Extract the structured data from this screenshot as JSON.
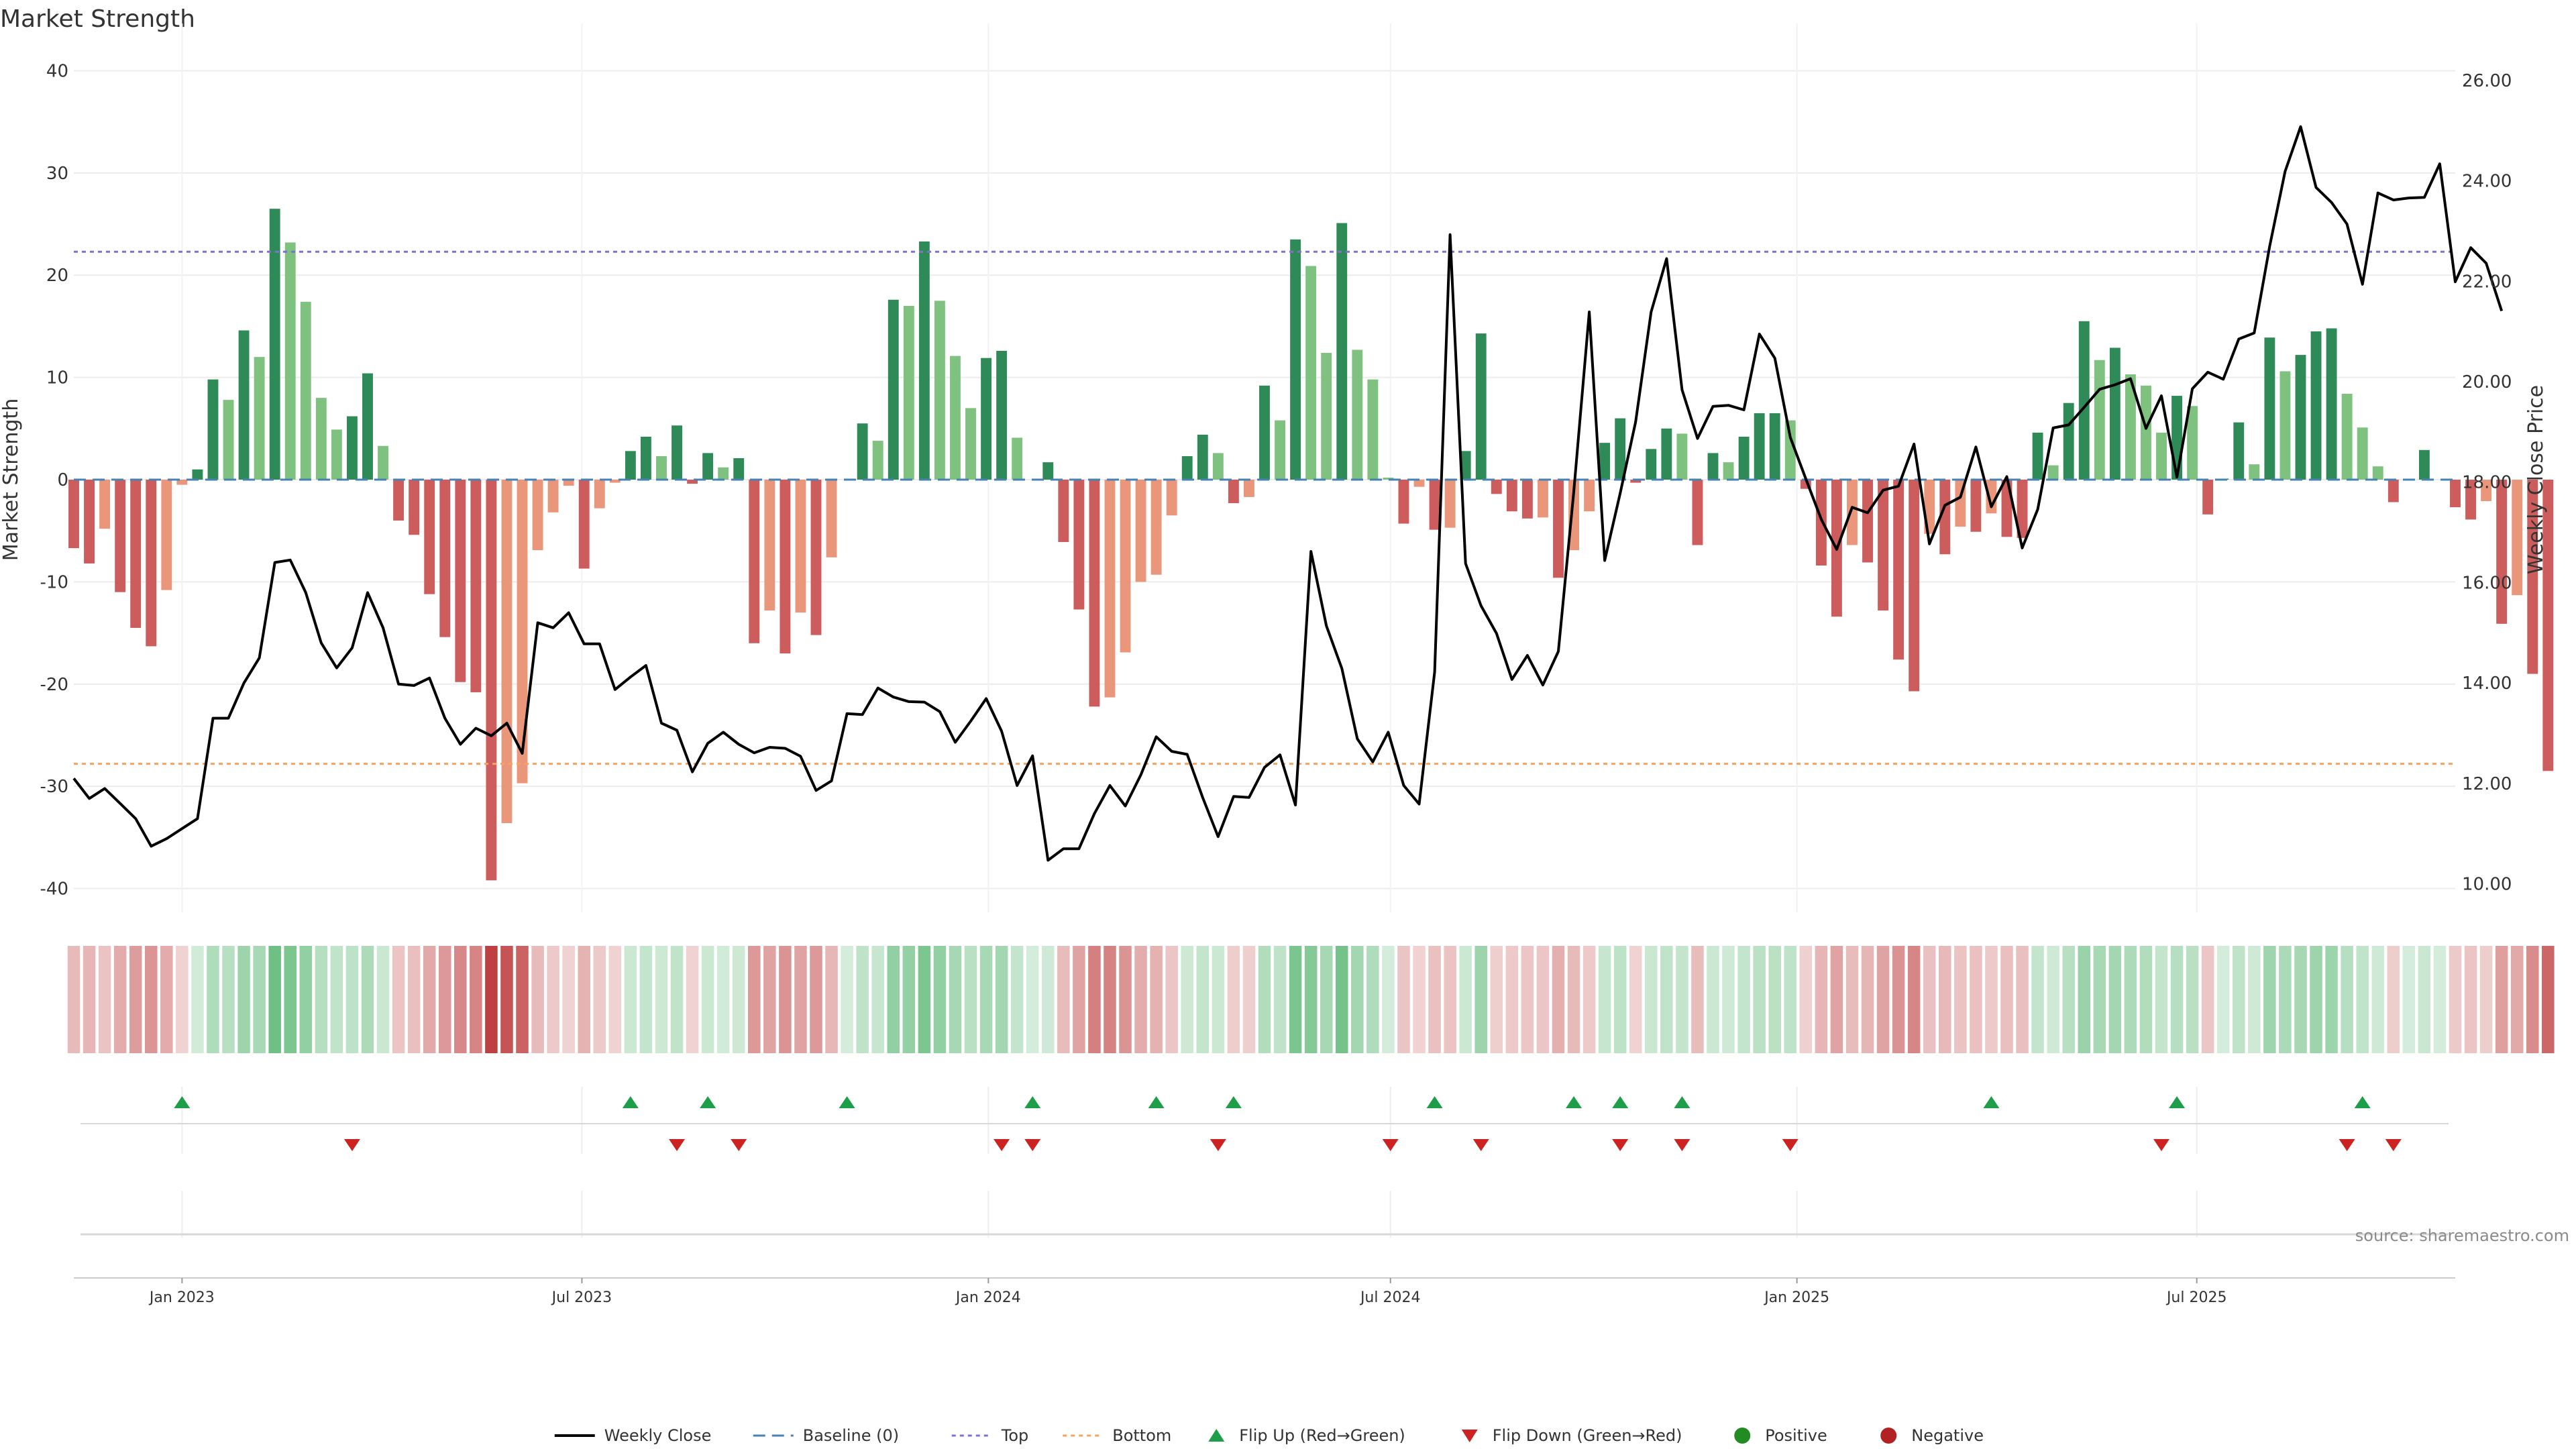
{
  "chart_data": {
    "type": "bar",
    "title": "Market Strength",
    "ylabel_left": "Market Strength",
    "ylabel_right": "Weekly Close Price",
    "ylim_left": [
      -42,
      42
    ],
    "ylim_right": [
      9.5,
      26.6
    ],
    "yticks_left": [
      40,
      30,
      20,
      10,
      0,
      -10,
      -20,
      -30,
      -40
    ],
    "yticks_right": [
      "26.00",
      "24.00",
      "22.00",
      "20.00",
      "18.00",
      "16.00",
      "14.00",
      "12.00",
      "10.00"
    ],
    "yticks_right_values": [
      26,
      24,
      22,
      20,
      18,
      16,
      14,
      12,
      10
    ],
    "x_start": "2022-11-13",
    "x_end": "2025-10-26",
    "xticks": [
      {
        "date": "2023-01-01",
        "label": "Jan 2023"
      },
      {
        "date": "2023-07-01",
        "label": "Jul 2023"
      },
      {
        "date": "2024-01-01",
        "label": "Jan 2024"
      },
      {
        "date": "2024-07-01",
        "label": "Jul 2024"
      },
      {
        "date": "2025-01-01",
        "label": "Jan 2025"
      },
      {
        "date": "2025-07-01",
        "label": "Jul 2025"
      }
    ],
    "weeks_first": "2022-11-13",
    "strength": [
      -6.7,
      -8.2,
      -4.8,
      -11,
      -14.5,
      -16.3,
      -10.8,
      -0.5,
      1,
      9.8,
      7.8,
      14.6,
      12,
      26.5,
      23.2,
      17.4,
      8,
      4.9,
      6.2,
      10.4,
      3.3,
      -4,
      -5.4,
      -11.2,
      -15.4,
      -19.8,
      -20.8,
      -39.2,
      -33.6,
      -29.7,
      -6.9,
      -3.2,
      -0.6,
      -8.7,
      -2.8,
      -0.3,
      2.8,
      4.2,
      2.3,
      5.3,
      -0.4,
      2.6,
      1.2,
      2.1,
      -16,
      -12.8,
      -17,
      -13,
      -15.2,
      -7.6,
      0,
      5.5,
      3.8,
      17.6,
      17,
      23.3,
      17.5,
      12.1,
      7,
      11.9,
      12.6,
      4.1,
      0,
      1.7,
      -6.1,
      -12.7,
      -22.2,
      -21.3,
      -16.9,
      -10,
      -9.3,
      -3.5,
      2.3,
      4.4,
      2.6,
      -2.3,
      -1.7,
      9.2,
      5.8,
      23.5,
      20.9,
      12.4,
      25.1,
      12.7,
      9.8,
      0.2,
      -4.3,
      -0.7,
      -4.9,
      -4.7,
      2.8,
      14.3,
      -1.4,
      -3.1,
      -3.8,
      -3.7,
      -9.6,
      -6.9,
      -3.1,
      3.6,
      6,
      -0.3,
      3,
      5,
      4.5,
      -6.4,
      2.6,
      1.7,
      4.2,
      6.5,
      6.5,
      5.8,
      -0.9,
      -8.4,
      -13.4,
      -6.4,
      -8.1,
      -12.8,
      -17.6,
      -20.7,
      -5.3,
      -7.3,
      -4.6,
      -5.1,
      -3.3,
      -5.6,
      -5.7,
      4.6,
      1.4,
      7.5,
      15.5,
      11.7,
      12.9,
      10.3,
      9.2,
      4.6,
      8.2,
      7.2,
      -3.4,
      0.1,
      5.6,
      1.5,
      13.9,
      10.6,
      12.2,
      14.5,
      14.8,
      8.4,
      5.1,
      1.3,
      -2.2,
      0,
      2.9,
      0,
      -2.7,
      -3.9,
      -2.1,
      -14.1,
      -11.3,
      -19,
      -28.5
    ],
    "weekly_close": [
      12.1,
      11.7,
      11.9,
      11.6,
      11.3,
      10.75,
      10.9,
      11.1,
      11.3,
      13.3,
      13.3,
      14,
      14.5,
      16.4,
      16.45,
      15.8,
      14.8,
      14.3,
      14.7,
      15.8,
      15.1,
      13.98,
      13.95,
      14.1,
      13.3,
      12.78,
      13.1,
      12.95,
      13.2,
      12.6,
      15.2,
      15.1,
      15.4,
      14.78,
      14.78,
      13.87,
      14.12,
      14.35,
      13.2,
      13.06,
      12.23,
      12.8,
      13.02,
      12.78,
      12.61,
      12.72,
      12.7,
      12.54,
      11.86,
      12.05,
      13.39,
      13.37,
      13.9,
      13.72,
      13.63,
      13.62,
      13.43,
      12.82,
      13.24,
      13.69,
      13.04,
      11.96,
      12.55,
      10.47,
      10.7,
      10.7,
      11.4,
      11.96,
      11.55,
      12.17,
      12.93,
      12.64,
      12.58,
      11.72,
      10.94,
      11.74,
      11.72,
      12.32,
      12.57,
      11.57,
      16.62,
      15.14,
      14.29,
      12.89,
      12.43,
      13.02,
      11.96,
      11.59,
      14.22,
      22.93,
      16.38,
      15.54,
      14.99,
      14.07,
      14.55,
      13.96,
      14.63,
      17.81,
      21.39,
      16.44,
      17.78,
      19.2,
      21.39,
      22.45,
      19.84,
      18.87,
      19.51,
      19.53,
      19.44,
      20.95,
      20.47,
      18.89,
      18.07,
      17.26,
      16.66,
      17.5,
      17.39,
      17.84,
      17.92,
      18.76,
      16.77,
      17.54,
      17.7,
      18.7,
      17.51,
      18.11,
      16.69,
      17.46,
      19.08,
      19.14,
      19.49,
      19.85,
      19.94,
      20.06,
      19.07,
      19.72,
      18.1,
      19.86,
      20.19,
      20.05,
      20.85,
      20.97,
      22.7,
      24.19,
      25.08,
      23.87,
      23.57,
      23.14,
      21.94,
      23.76,
      23.62,
      23.66,
      23.67,
      24.34,
      21.99,
      22.67,
      22.36,
      21.41
    ],
    "weekly_close_label": "Weekly Close",
    "top_level": 22.3,
    "bottom_level": -27.8,
    "flip_up_dates": [
      "2023-01-01",
      "2023-07-23",
      "2023-08-27",
      "2023-10-29",
      "2024-01-21",
      "2024-03-17",
      "2024-04-21",
      "2024-07-21",
      "2024-09-22",
      "2024-10-13",
      "2024-11-10",
      "2025-03-30",
      "2025-06-22",
      "2025-09-14"
    ],
    "flip_down_dates": [
      "2023-03-19",
      "2023-08-13",
      "2023-09-10",
      "2024-01-07",
      "2024-01-21",
      "2024-04-14",
      "2024-07-01",
      "2024-08-11",
      "2024-10-13",
      "2024-11-10",
      "2024-12-29",
      "2025-06-15",
      "2025-09-07",
      "2025-09-28"
    ],
    "colors": {
      "strong_green": "#2e8b57",
      "light_green": "#7fc17f",
      "strong_red": "#cd5c5c",
      "light_red": "#e9967a",
      "top_line": "#8470cc",
      "bottom_line": "#f4a460",
      "baseline": "#4682b4",
      "flip_up": "#1e9e48",
      "flip_down": "#cc2222",
      "positive_dot": "#228b22",
      "negative_dot": "#b22222",
      "price_line": "#000000"
    },
    "legend": [
      {
        "key": "line",
        "label": "Weekly Close"
      },
      {
        "key": "baseline",
        "label": "Baseline (0)"
      },
      {
        "key": "top",
        "label": "Top"
      },
      {
        "key": "bottom",
        "label": "Bottom"
      },
      {
        "key": "flip_up",
        "label": "Flip Up (Red→Green)"
      },
      {
        "key": "flip_down",
        "label": "Flip Down (Green→Red)"
      },
      {
        "key": "positive",
        "label": "Positive"
      },
      {
        "key": "negative",
        "label": "Negative"
      }
    ],
    "legend_position": "bottom-center",
    "source": "source: sharemaestro.com"
  }
}
